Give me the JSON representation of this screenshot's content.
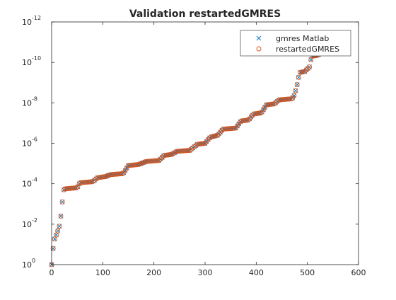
{
  "chart_data": {
    "type": "scatter",
    "title": "Validation restartedGMRES",
    "xlabel": "",
    "ylabel": "",
    "yscale": "log",
    "xlim": [
      0,
      600
    ],
    "ylim_exponent": [
      -12,
      0
    ],
    "x_ticks": [
      0,
      100,
      200,
      300,
      400,
      500,
      600
    ],
    "x_tick_labels": [
      "0",
      "100",
      "200",
      "300",
      "400",
      "500",
      "600"
    ],
    "y_tick_exponents": [
      0,
      -2,
      -4,
      -6,
      -8,
      -10,
      -12
    ],
    "y_tick_base": "10",
    "y_tick_exp_labels": [
      "0",
      "-2",
      "-4",
      "-6",
      "-8",
      "-10",
      "-12"
    ],
    "grid": false,
    "legend_position": "top-right",
    "residual_curve_log10": [
      [
        0,
        0
      ],
      [
        1,
        -0.5
      ],
      [
        3,
        -0.8
      ],
      [
        5,
        -1.2
      ],
      [
        8,
        -1.4
      ],
      [
        11,
        -1.6
      ],
      [
        14,
        -1.8
      ],
      [
        16,
        -2.0
      ],
      [
        18,
        -2.4
      ],
      [
        20,
        -2.9
      ],
      [
        22,
        -3.3
      ],
      [
        24,
        -3.7
      ],
      [
        27,
        -3.75
      ],
      [
        50,
        -3.8
      ],
      [
        55,
        -4.05
      ],
      [
        80,
        -4.1
      ],
      [
        90,
        -4.3
      ],
      [
        105,
        -4.35
      ],
      [
        115,
        -4.45
      ],
      [
        140,
        -4.5
      ],
      [
        150,
        -4.9
      ],
      [
        170,
        -4.95
      ],
      [
        185,
        -5.1
      ],
      [
        210,
        -5.15
      ],
      [
        220,
        -5.4
      ],
      [
        235,
        -5.45
      ],
      [
        245,
        -5.6
      ],
      [
        270,
        -5.65
      ],
      [
        285,
        -5.95
      ],
      [
        300,
        -6.0
      ],
      [
        310,
        -6.3
      ],
      [
        325,
        -6.4
      ],
      [
        335,
        -6.7
      ],
      [
        360,
        -6.75
      ],
      [
        370,
        -7.1
      ],
      [
        385,
        -7.15
      ],
      [
        395,
        -7.45
      ],
      [
        410,
        -7.5
      ],
      [
        420,
        -7.9
      ],
      [
        435,
        -7.95
      ],
      [
        445,
        -8.15
      ],
      [
        470,
        -8.2
      ],
      [
        475,
        -8.4
      ],
      [
        480,
        -8.9
      ],
      [
        485,
        -9.5
      ],
      [
        495,
        -9.55
      ],
      [
        505,
        -9.8
      ],
      [
        508,
        -10.3
      ],
      [
        520,
        -10.35
      ],
      [
        525,
        -10.45
      ],
      [
        540,
        -10.6
      ]
    ],
    "series": [
      {
        "name": "gmres Matlab",
        "marker": "x",
        "color": "#0072BD",
        "step": 3
      },
      {
        "name": "restartedGMRES",
        "marker": "o",
        "color": "#D95319",
        "step": 3
      }
    ]
  }
}
